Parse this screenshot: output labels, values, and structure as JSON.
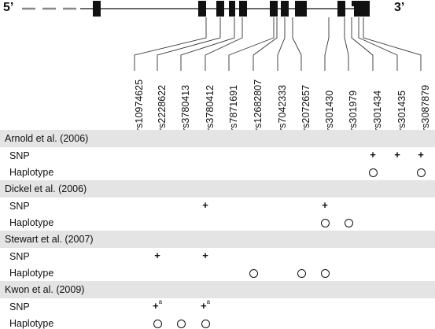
{
  "gene": {
    "five_prime": "5’",
    "three_prime": "3’"
  },
  "snps": [
    "rs10974625",
    "rs2228622",
    "rs3780413",
    "rs3780412",
    "rs7871691",
    "rs12682807",
    "rs7042333",
    "rs2072657",
    "rs301430",
    "rs301979",
    "rs301434",
    "rs301435",
    "rs3087879"
  ],
  "studies": [
    {
      "title": "Arnold et al. (2006)",
      "rows": [
        {
          "label": "SNP",
          "marks": [
            {
              "snp": 10,
              "kind": "plus"
            },
            {
              "snp": 11,
              "kind": "plus"
            },
            {
              "snp": 12,
              "kind": "plus"
            }
          ]
        },
        {
          "label": "Haplotype",
          "marks": [
            {
              "snp": 10,
              "kind": "circle"
            },
            {
              "snp": 12,
              "kind": "circle"
            }
          ]
        }
      ]
    },
    {
      "title": "Dickel et al. (2006)",
      "rows": [
        {
          "label": "SNP",
          "marks": [
            {
              "snp": 3,
              "kind": "plus"
            },
            {
              "snp": 8,
              "kind": "plus"
            }
          ]
        },
        {
          "label": "Haplotype",
          "marks": [
            {
              "snp": 8,
              "kind": "circle"
            },
            {
              "snp": 9,
              "kind": "circle"
            }
          ]
        }
      ]
    },
    {
      "title": "Stewart et al. (2007)",
      "rows": [
        {
          "label": "SNP",
          "marks": [
            {
              "snp": 1,
              "kind": "plus"
            },
            {
              "snp": 3,
              "kind": "plus"
            }
          ]
        },
        {
          "label": "Haplotype",
          "marks": [
            {
              "snp": 5,
              "kind": "circle"
            },
            {
              "snp": 7,
              "kind": "circle"
            },
            {
              "snp": 8,
              "kind": "circle"
            }
          ]
        }
      ]
    },
    {
      "title": "Kwon et al. (2009)",
      "rows": [
        {
          "label": "SNP",
          "marks": [
            {
              "snp": 1,
              "kind": "plus",
              "sup": "a"
            },
            {
              "snp": 3,
              "kind": "plus",
              "sup": "a"
            }
          ]
        },
        {
          "label": "Haplotype",
          "marks": [
            {
              "snp": 1,
              "kind": "circle"
            },
            {
              "snp": 2,
              "kind": "circle"
            },
            {
              "snp": 3,
              "kind": "circle"
            }
          ]
        }
      ]
    }
  ]
}
